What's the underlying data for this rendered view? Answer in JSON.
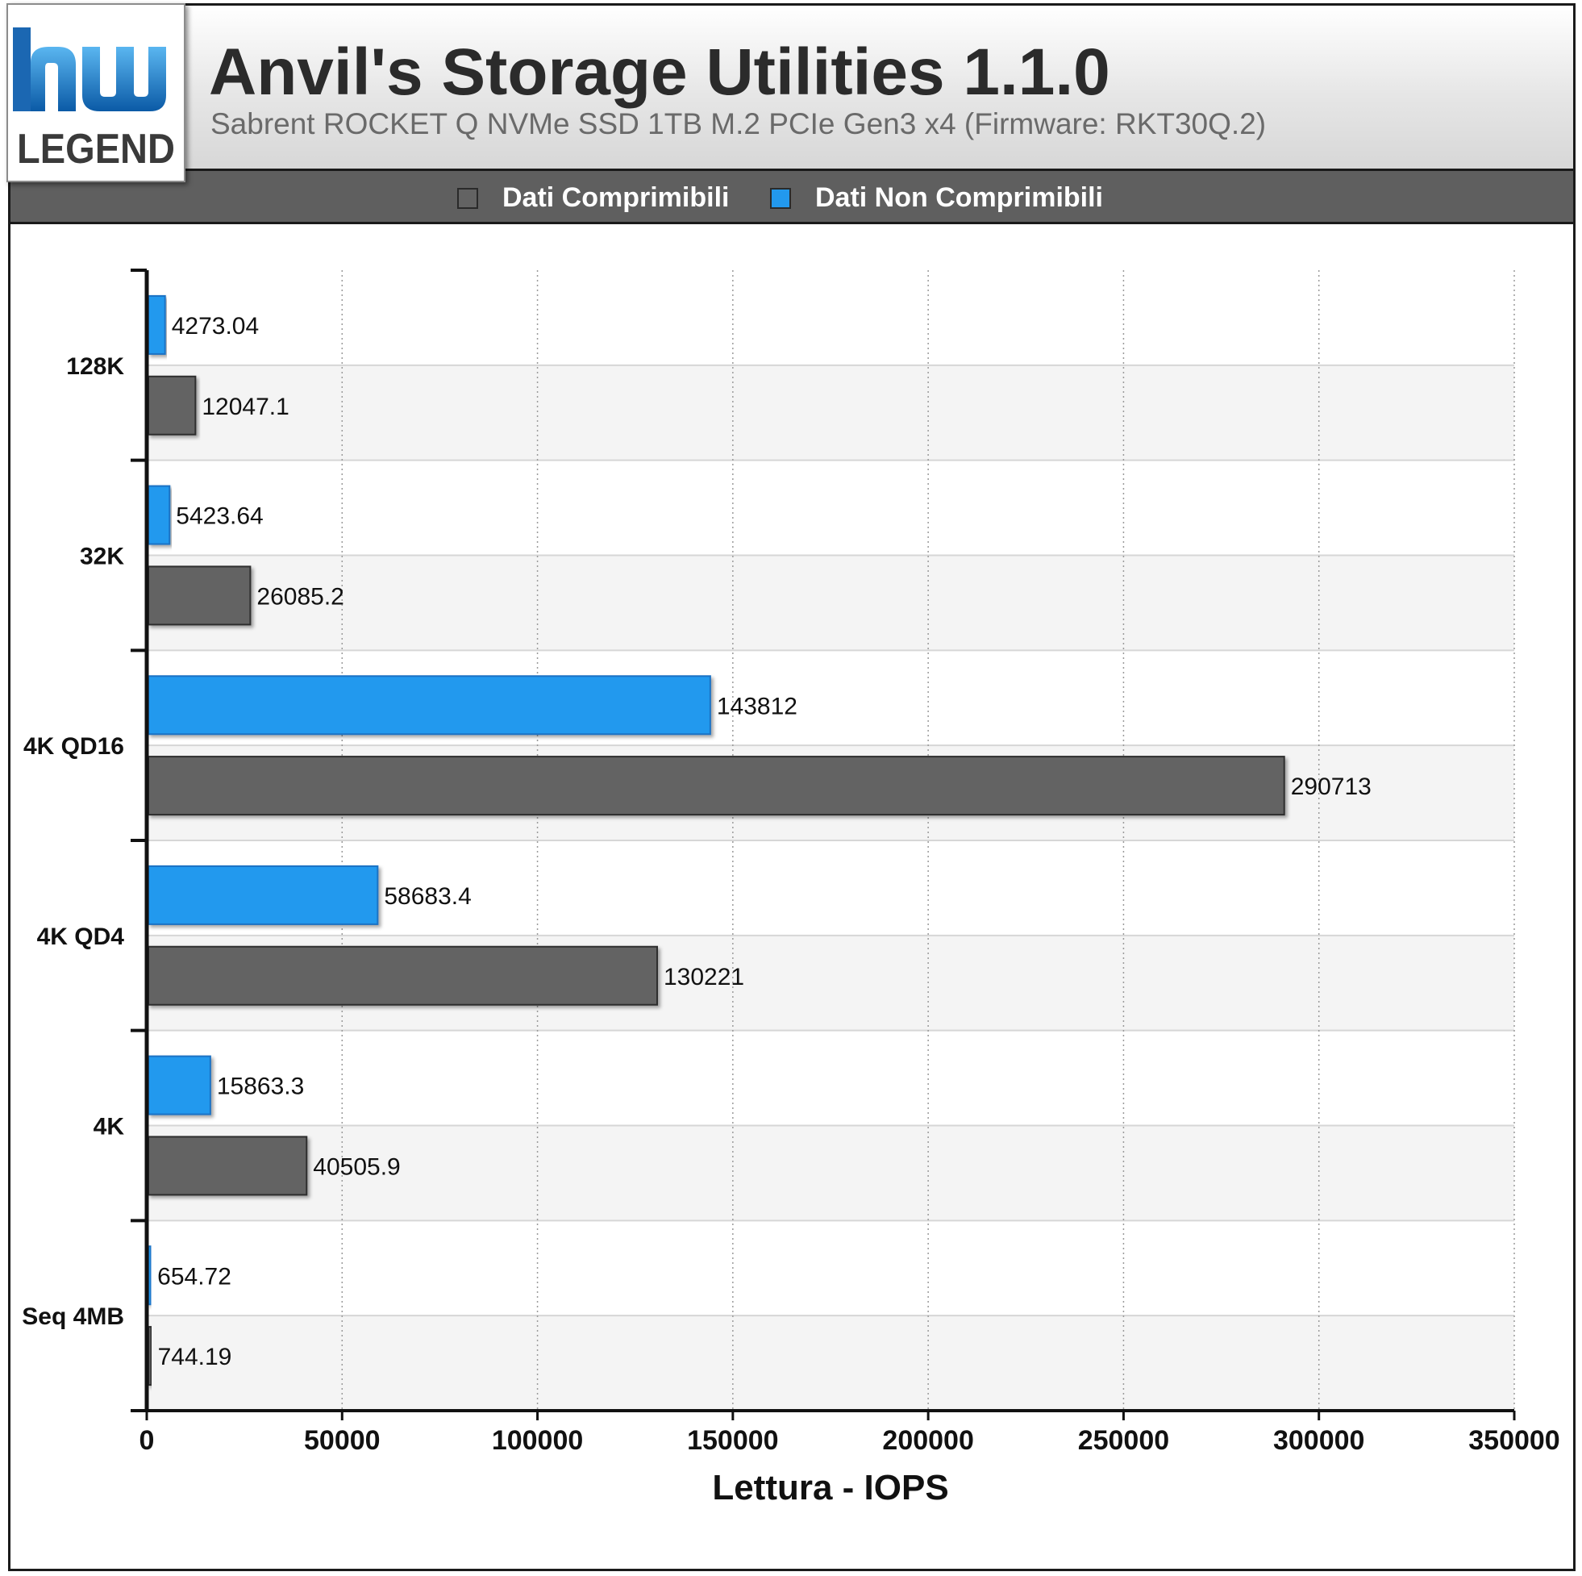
{
  "header": {
    "title": "Anvil's Storage Utilities 1.1.0",
    "subtitle": "Sabrent ROCKET Q NVMe SSD 1TB M.2 PCIe Gen3 x4 (Firmware: RKT30Q.2)",
    "logo_text": "hw LEGEND"
  },
  "legend": {
    "items": [
      {
        "label": "Dati Comprimibili",
        "color": "#636363"
      },
      {
        "label": "Dati Non Comprimibili",
        "color": "#2299ee"
      }
    ]
  },
  "chart_data": {
    "type": "bar",
    "orientation": "horizontal",
    "title": "Anvil's Storage Utilities 1.1.0",
    "subtitle": "Sabrent ROCKET Q NVMe SSD 1TB M.2 PCIe Gen3 x4 (Firmware: RKT30Q.2)",
    "xlabel": "Lettura - IOPS",
    "ylabel": "",
    "xlim": [
      0,
      350000
    ],
    "xticks": [
      "0",
      "50000",
      "100000",
      "150000",
      "200000",
      "250000",
      "300000",
      "350000"
    ],
    "grid": true,
    "legend_position": "top",
    "categories": [
      "128K",
      "32K",
      "4K QD16",
      "4K QD4",
      "4K",
      "Seq 4MB"
    ],
    "series": [
      {
        "name": "Dati Non Comprimibili",
        "color": "#2299ee",
        "values": [
          4273.04,
          5423.64,
          143812,
          58683.4,
          15863.3,
          654.72
        ],
        "labels": [
          "4273.04",
          "5423.64",
          "143812",
          "58683.4",
          "15863.3",
          "654.72"
        ]
      },
      {
        "name": "Dati Comprimibili",
        "color": "#636363",
        "values": [
          12047.1,
          26085.2,
          290713,
          130221,
          40505.9,
          744.19
        ],
        "labels": [
          "12047.1",
          "26085.2",
          "290713",
          "130221",
          "40505.9",
          "744.19"
        ]
      }
    ]
  }
}
